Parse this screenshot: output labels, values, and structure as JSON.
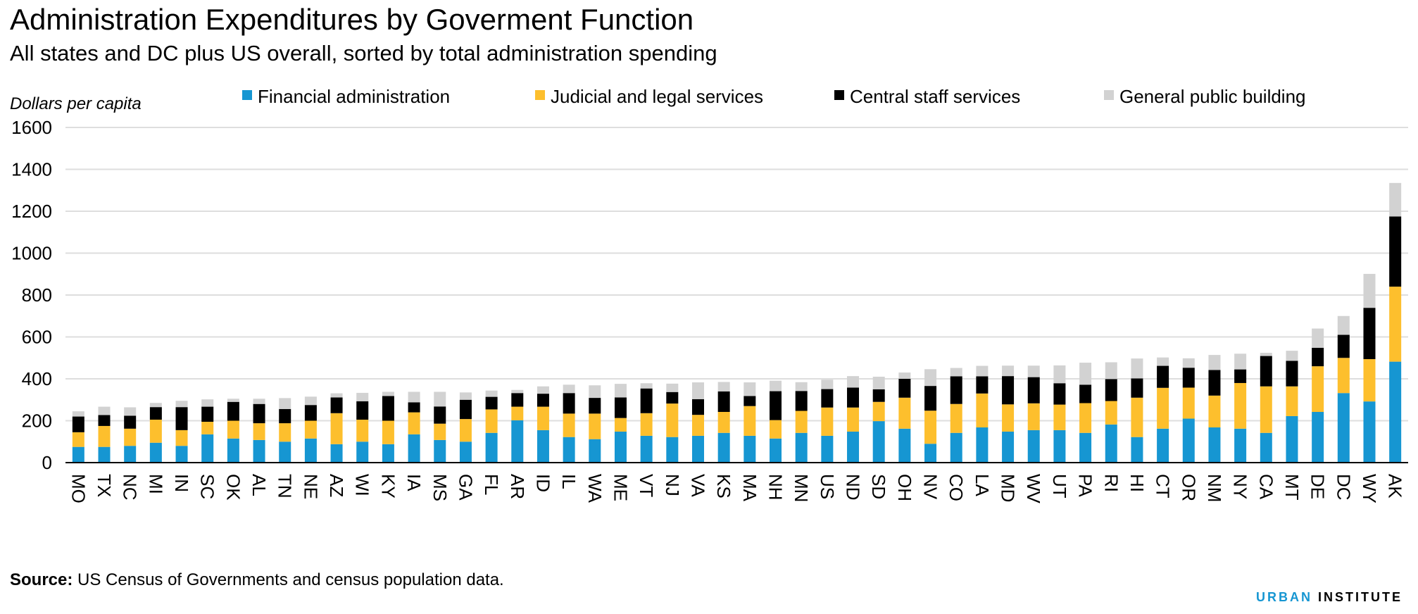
{
  "title": "Administration Expenditures by Goverment Function",
  "subtitle": "All states and DC plus US overall, sorted by total administration spending",
  "source": {
    "label": "Source:",
    "text": "US Census of Governments and census population data."
  },
  "brand": {
    "part1": "URBAN",
    "part2": "INSTITUTE"
  },
  "colors": {
    "financial": "#1696d2",
    "judicial": "#fdbf2d",
    "central": "#000000",
    "building": "#d2d2d2",
    "grid": "#dedede"
  },
  "chart_data": {
    "type": "bar",
    "stacked": true,
    "ylabel": "Dollars per capita",
    "ylim": [
      0,
      1600
    ],
    "yticks": [
      0,
      200,
      400,
      600,
      800,
      1000,
      1200,
      1400,
      1600
    ],
    "grid": true,
    "legend_position": "top",
    "categories": [
      "MO",
      "TX",
      "NC",
      "MI",
      "IN",
      "SC",
      "OK",
      "AL",
      "TN",
      "NE",
      "AZ",
      "WI",
      "KY",
      "IA",
      "MS",
      "GA",
      "FL",
      "AR",
      "ID",
      "IL",
      "WA",
      "ME",
      "VT",
      "NJ",
      "VA",
      "KS",
      "MA",
      "NH",
      "MN",
      "US",
      "ND",
      "SD",
      "OH",
      "NV",
      "CO",
      "LA",
      "MD",
      "WV",
      "UT",
      "PA",
      "RI",
      "HI",
      "CT",
      "OR",
      "NM",
      "NY",
      "CA",
      "MT",
      "DE",
      "DC",
      "WY",
      "AK"
    ],
    "series": [
      {
        "name": "Financial administration",
        "color": "#1696d2",
        "values": [
          75,
          75,
          80,
          95,
          80,
          135,
          115,
          108,
          100,
          115,
          88,
          100,
          88,
          135,
          108,
          100,
          142,
          202,
          155,
          122,
          112,
          148,
          128,
          122,
          128,
          142,
          128,
          115,
          142,
          128,
          148,
          198,
          162,
          90,
          142,
          168,
          148,
          155,
          155,
          142,
          182,
          122,
          162,
          210,
          168,
          162,
          142,
          222,
          242,
          332,
          292,
          482
        ]
      },
      {
        "name": "Judicial and legal services",
        "color": "#fdbf2d",
        "values": [
          70,
          100,
          82,
          110,
          75,
          60,
          85,
          80,
          88,
          85,
          148,
          105,
          112,
          105,
          78,
          108,
          112,
          65,
          112,
          112,
          122,
          65,
          108,
          160,
          100,
          100,
          142,
          88,
          105,
          135,
          115,
          92,
          148,
          158,
          138,
          162,
          130,
          128,
          122,
          142,
          112,
          188,
          195,
          148,
          152,
          218,
          222,
          142,
          218,
          168,
          202,
          358
        ]
      },
      {
        "name": "Central staff services",
        "color": "#000000",
        "values": [
          75,
          52,
          62,
          60,
          110,
          72,
          90,
          92,
          68,
          75,
          75,
          88,
          118,
          48,
          82,
          92,
          60,
          65,
          62,
          98,
          75,
          98,
          118,
          55,
          75,
          98,
          48,
          138,
          95,
          88,
          95,
          60,
          90,
          118,
          132,
          82,
          135,
          125,
          102,
          88,
          105,
          92,
          105,
          95,
          122,
          65,
          145,
          122,
          88,
          110,
          245,
          335
        ]
      },
      {
        "name": "General public building",
        "color": "#d2d2d2",
        "values": [
          25,
          40,
          40,
          20,
          30,
          35,
          15,
          25,
          52,
          40,
          20,
          40,
          20,
          50,
          70,
          35,
          30,
          15,
          35,
          40,
          60,
          65,
          25,
          40,
          80,
          45,
          65,
          50,
          42,
          45,
          55,
          60,
          30,
          80,
          40,
          50,
          50,
          55,
          85,
          105,
          80,
          95,
          40,
          45,
          72,
          75,
          15,
          48,
          92,
          90,
          162,
          160
        ]
      }
    ]
  }
}
